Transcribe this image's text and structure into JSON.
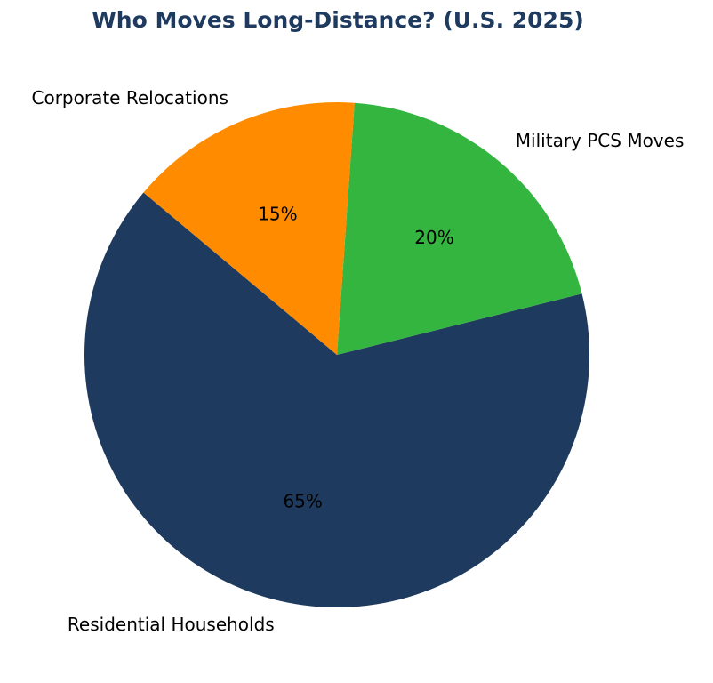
{
  "chart_data": {
    "type": "pie",
    "title": "Who Moves Long-Distance? (U.S. 2025)",
    "categories": [
      "Residential Households",
      "Military PCS Moves",
      "Corporate Relocations"
    ],
    "values": [
      65,
      20,
      15
    ],
    "value_labels": [
      "65%",
      "20%",
      "15%"
    ],
    "colors": [
      "#1f3a5f",
      "#33b540",
      "#ff8c00"
    ],
    "start_angle": 140,
    "counterclock": true
  }
}
